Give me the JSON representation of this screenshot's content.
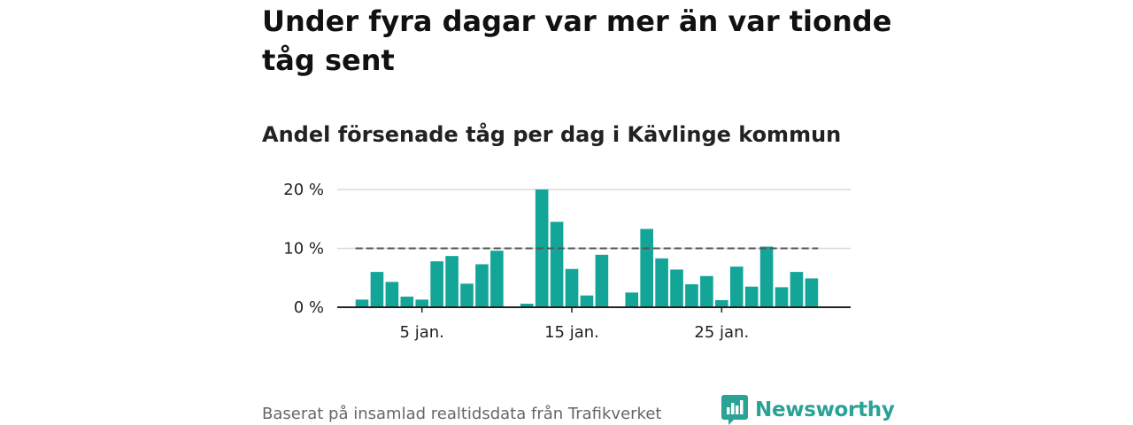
{
  "header": {
    "title": "Under fyra dagar var mer än var tionde tåg sent",
    "subtitle": "Andel försenade tåg per dag i Kävlinge kommun"
  },
  "footer": {
    "source": "Baserat på insamlad realtidsdata från Trafikverket",
    "brand": "Newsworthy"
  },
  "colors": {
    "bar": "#14a599",
    "reference_line": "#555555",
    "grid": "#d9d9d9",
    "axis": "#222222",
    "brand": "#2aa295"
  },
  "chart_data": {
    "type": "bar",
    "title": "Andel försenade tåg per dag i Kävlinge kommun",
    "x": [
      1,
      2,
      3,
      4,
      5,
      6,
      7,
      8,
      9,
      10,
      11,
      12,
      13,
      14,
      15,
      16,
      17,
      18,
      19,
      20,
      21,
      22,
      23,
      24,
      25,
      26,
      27,
      28,
      29,
      30,
      31
    ],
    "values": [
      1.3,
      6.0,
      4.3,
      1.8,
      1.3,
      7.8,
      8.7,
      4.0,
      7.3,
      9.6,
      0,
      0.6,
      20.0,
      14.5,
      6.5,
      2.0,
      8.9,
      0,
      2.5,
      13.3,
      8.3,
      6.4,
      3.9,
      5.3,
      1.2,
      6.9,
      3.5,
      10.3,
      3.4,
      6.0,
      4.9
    ],
    "x_ticks": [
      {
        "x": 5,
        "label": "5 jan."
      },
      {
        "x": 15,
        "label": "15 jan."
      },
      {
        "x": 25,
        "label": "25 jan."
      }
    ],
    "y_ticks": [
      {
        "y": 0,
        "label": "0 %"
      },
      {
        "y": 10,
        "label": "10 %"
      },
      {
        "y": 20,
        "label": "20 %"
      }
    ],
    "ylim": [
      0,
      20
    ],
    "xlim": [
      0.5,
      31.5
    ],
    "reference_line": 10,
    "grid": true,
    "xlabel": "",
    "ylabel": ""
  }
}
